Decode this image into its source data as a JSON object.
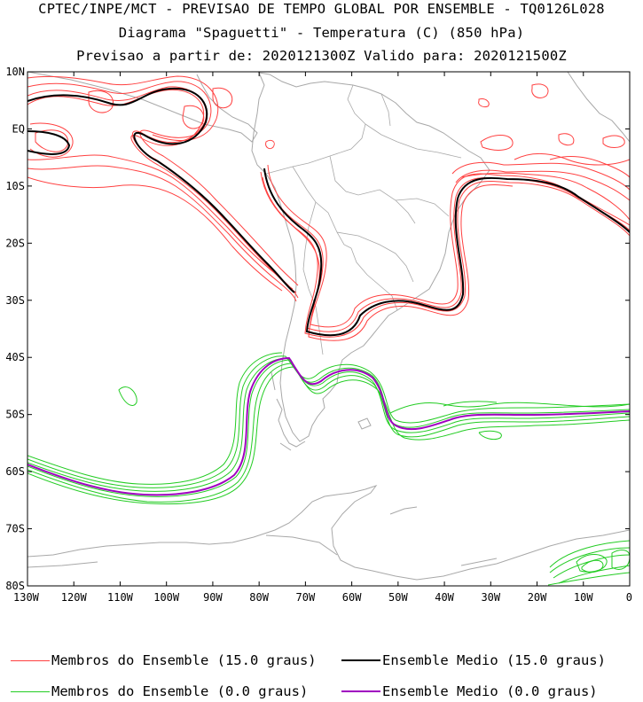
{
  "titles": {
    "line1": "CPTEC/INPE/MCT - PREVISAO DE TEMPO GLOBAL POR ENSEMBLE - TQ0126L028",
    "line2": "Diagrama \"Spaguetti\" - Temperatura (C) (850 hPa)",
    "line3": "Previsao a partir de: 2020121300Z  Valido para: 2020121500Z"
  },
  "axes": {
    "lat_labels": [
      "10N",
      "EQ",
      "10S",
      "20S",
      "30S",
      "40S",
      "50S",
      "60S",
      "70S",
      "80S"
    ],
    "lon_labels": [
      "130W",
      "120W",
      "110W",
      "100W",
      "90W",
      "80W",
      "70W",
      "60W",
      "50W",
      "40W",
      "30W",
      "20W",
      "10W",
      "0"
    ],
    "lon_range": [
      -130,
      0
    ],
    "lat_range": [
      -80,
      10
    ]
  },
  "colors": {
    "member_15": "#ff4040",
    "mean_15": "#000000",
    "member_0": "#22cc22",
    "mean_0": "#a000c0",
    "coast": "#a8a8a8",
    "frame": "#000000"
  },
  "legend": {
    "member_15": "Membros do Ensemble (15.0 graus)",
    "mean_15": "Ensemble Medio (15.0 graus)",
    "member_0": "Membros do Ensemble (0.0 graus)",
    "mean_0": "Ensemble Medio (0.0 graus)"
  }
}
